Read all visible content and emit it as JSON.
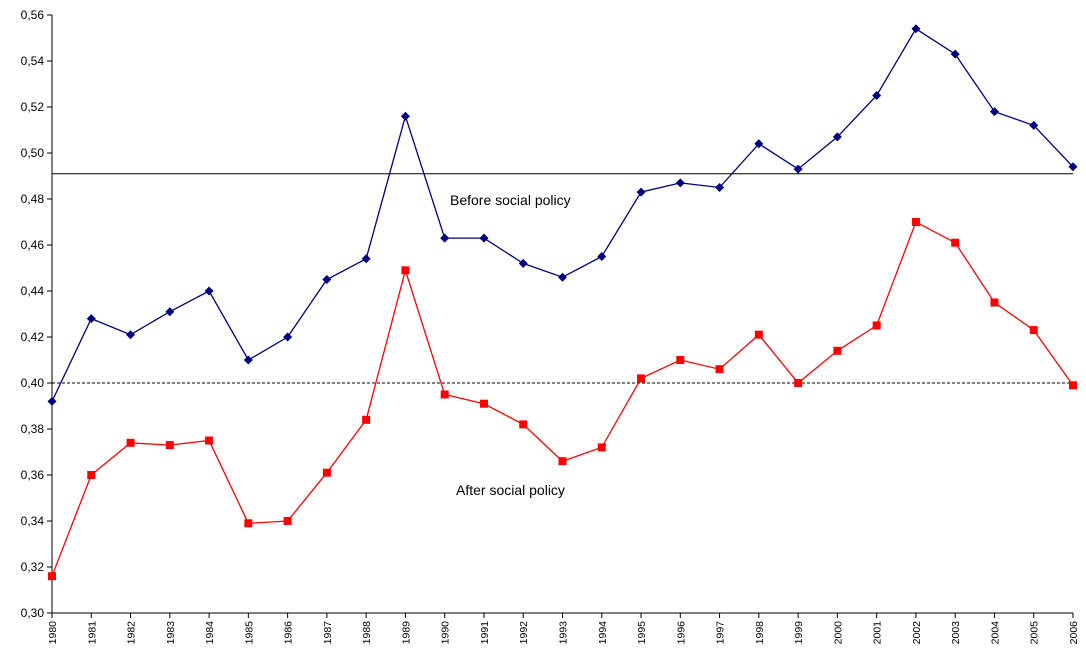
{
  "chart_data": {
    "type": "line",
    "x": [
      "1980",
      "1981",
      "1982",
      "1983",
      "1984",
      "1985",
      "1986",
      "1987",
      "1988",
      "1989",
      "1990",
      "1991",
      "1992",
      "1993",
      "1994",
      "1995",
      "1996",
      "1997",
      "1998",
      "1999",
      "2000",
      "2001",
      "2002",
      "2003",
      "2004",
      "2005",
      "2006"
    ],
    "ylim": [
      0.3,
      0.56
    ],
    "yticks": [
      "0,30",
      "0,32",
      "0,34",
      "0,36",
      "0,38",
      "0,40",
      "0,42",
      "0,44",
      "0,46",
      "0,48",
      "0,50",
      "0,52",
      "0,54",
      "0,56"
    ],
    "series": [
      {
        "name": "Before social policy",
        "color": "#000080",
        "marker": "diamond",
        "values": [
          0.392,
          0.428,
          0.421,
          0.431,
          0.44,
          0.41,
          0.42,
          0.445,
          0.454,
          0.516,
          0.463,
          0.463,
          0.452,
          0.446,
          0.455,
          0.483,
          0.487,
          0.485,
          0.504,
          0.493,
          0.507,
          0.525,
          0.554,
          0.543,
          0.518,
          0.512,
          0.494
        ]
      },
      {
        "name": "After social policy",
        "color": "#ff0000",
        "marker": "square",
        "values": [
          0.316,
          0.36,
          0.374,
          0.373,
          0.375,
          0.339,
          0.34,
          0.361,
          0.384,
          0.449,
          0.395,
          0.391,
          0.382,
          0.366,
          0.372,
          0.402,
          0.41,
          0.406,
          0.421,
          0.4,
          0.414,
          0.425,
          0.47,
          0.461,
          0.435,
          0.423,
          0.399
        ]
      }
    ],
    "reference_lines": [
      {
        "value": 0.491,
        "style": "solid"
      },
      {
        "value": 0.4,
        "style": "dashed"
      }
    ],
    "annotations": [
      {
        "text": "Before social policy"
      },
      {
        "text": "After social policy"
      }
    ],
    "grid": false,
    "legend": "none"
  }
}
